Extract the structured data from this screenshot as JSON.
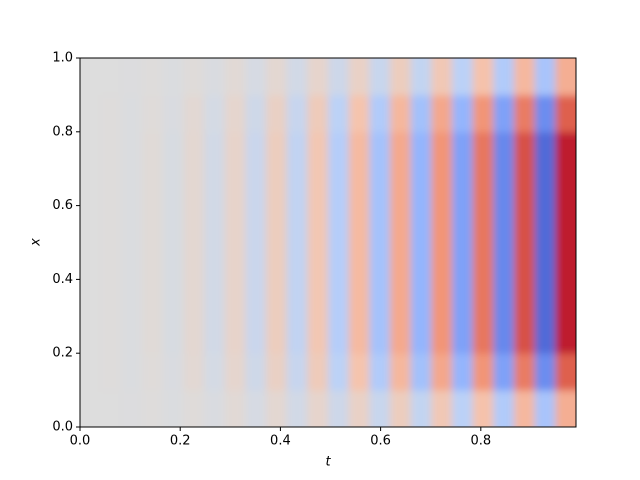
{
  "chart_data": {
    "type": "heatmap",
    "x_label": "t",
    "y_label": "x",
    "colormap": "coolwarm",
    "clim": [
      -1,
      1
    ],
    "xlim": [
      0,
      0.99
    ],
    "ylim": [
      0,
      1
    ],
    "xticks": [
      {
        "value": 0,
        "label": "0.0"
      },
      {
        "value": 0.2,
        "label": "0.2"
      },
      {
        "value": 0.4,
        "label": "0.4"
      },
      {
        "value": 0.6,
        "label": "0.6"
      },
      {
        "value": 0.8,
        "label": "0.8"
      }
    ],
    "yticks": [
      {
        "value": 0,
        "label": "0.0"
      },
      {
        "value": 0.2,
        "label": "0.2"
      },
      {
        "value": 0.4,
        "label": "0.4"
      },
      {
        "value": 0.6,
        "label": "0.6"
      },
      {
        "value": 0.8,
        "label": "0.8"
      },
      {
        "value": 1,
        "label": "1.0"
      }
    ],
    "z": [
      [
        0,
        0,
        -0.01,
        0.01,
        -0.02,
        0.02,
        -0.03,
        0.04,
        -0.05,
        0.06,
        -0.08,
        0.09,
        -0.11,
        0.12,
        -0.14,
        0.16,
        -0.18,
        0.21,
        -0.23,
        0.26,
        -0.29,
        0.32,
        -0.34,
        0.38
      ],
      [
        0,
        0.01,
        -0.02,
        0.02,
        -0.03,
        0.05,
        -0.06,
        0.08,
        -0.1,
        0.13,
        -0.15,
        0.18,
        -0.22,
        0.25,
        -0.29,
        0.33,
        -0.37,
        0.42,
        -0.46,
        0.52,
        -0.58,
        0.63,
        -0.69,
        0.75
      ],
      [
        0,
        0.01,
        -0.02,
        0.03,
        -0.04,
        0.06,
        -0.08,
        0.1,
        -0.13,
        0.16,
        -0.19,
        0.22,
        -0.27,
        0.31,
        -0.36,
        0.41,
        -0.46,
        0.52,
        -0.58,
        0.65,
        -0.72,
        0.79,
        -0.86,
        0.94
      ],
      [
        0,
        0.01,
        -0.02,
        0.03,
        -0.04,
        0.06,
        -0.08,
        0.1,
        -0.13,
        0.16,
        -0.19,
        0.22,
        -0.27,
        0.31,
        -0.36,
        0.41,
        -0.46,
        0.52,
        -0.58,
        0.65,
        -0.72,
        0.79,
        -0.86,
        0.94
      ],
      [
        0,
        0.01,
        -0.02,
        0.03,
        -0.04,
        0.06,
        -0.08,
        0.1,
        -0.13,
        0.16,
        -0.19,
        0.22,
        -0.27,
        0.31,
        -0.36,
        0.41,
        -0.46,
        0.52,
        -0.58,
        0.65,
        -0.72,
        0.79,
        -0.86,
        0.94
      ],
      [
        0,
        0.01,
        -0.02,
        0.03,
        -0.04,
        0.06,
        -0.08,
        0.1,
        -0.13,
        0.16,
        -0.19,
        0.22,
        -0.27,
        0.31,
        -0.36,
        0.41,
        -0.46,
        0.52,
        -0.58,
        0.65,
        -0.72,
        0.79,
        -0.86,
        0.94
      ],
      [
        0,
        0.01,
        -0.02,
        0.03,
        -0.04,
        0.06,
        -0.08,
        0.1,
        -0.13,
        0.16,
        -0.19,
        0.22,
        -0.27,
        0.31,
        -0.36,
        0.41,
        -0.46,
        0.52,
        -0.58,
        0.65,
        -0.72,
        0.79,
        -0.86,
        0.94
      ],
      [
        0,
        0.01,
        -0.02,
        0.03,
        -0.04,
        0.06,
        -0.08,
        0.1,
        -0.13,
        0.16,
        -0.19,
        0.22,
        -0.27,
        0.31,
        -0.36,
        0.41,
        -0.46,
        0.52,
        -0.58,
        0.65,
        -0.72,
        0.79,
        -0.86,
        0.94
      ],
      [
        0,
        0.01,
        -0.02,
        0.02,
        -0.03,
        0.05,
        -0.06,
        0.08,
        -0.1,
        0.13,
        -0.15,
        0.18,
        -0.22,
        0.25,
        -0.29,
        0.33,
        -0.37,
        0.42,
        -0.46,
        0.52,
        -0.58,
        0.63,
        -0.69,
        0.75
      ],
      [
        0,
        0,
        -0.01,
        0.01,
        -0.02,
        0.02,
        -0.03,
        0.04,
        -0.05,
        0.06,
        -0.08,
        0.09,
        -0.11,
        0.12,
        -0.14,
        0.16,
        -0.18,
        0.21,
        -0.23,
        0.26,
        -0.29,
        0.32,
        -0.34,
        0.38
      ]
    ]
  }
}
